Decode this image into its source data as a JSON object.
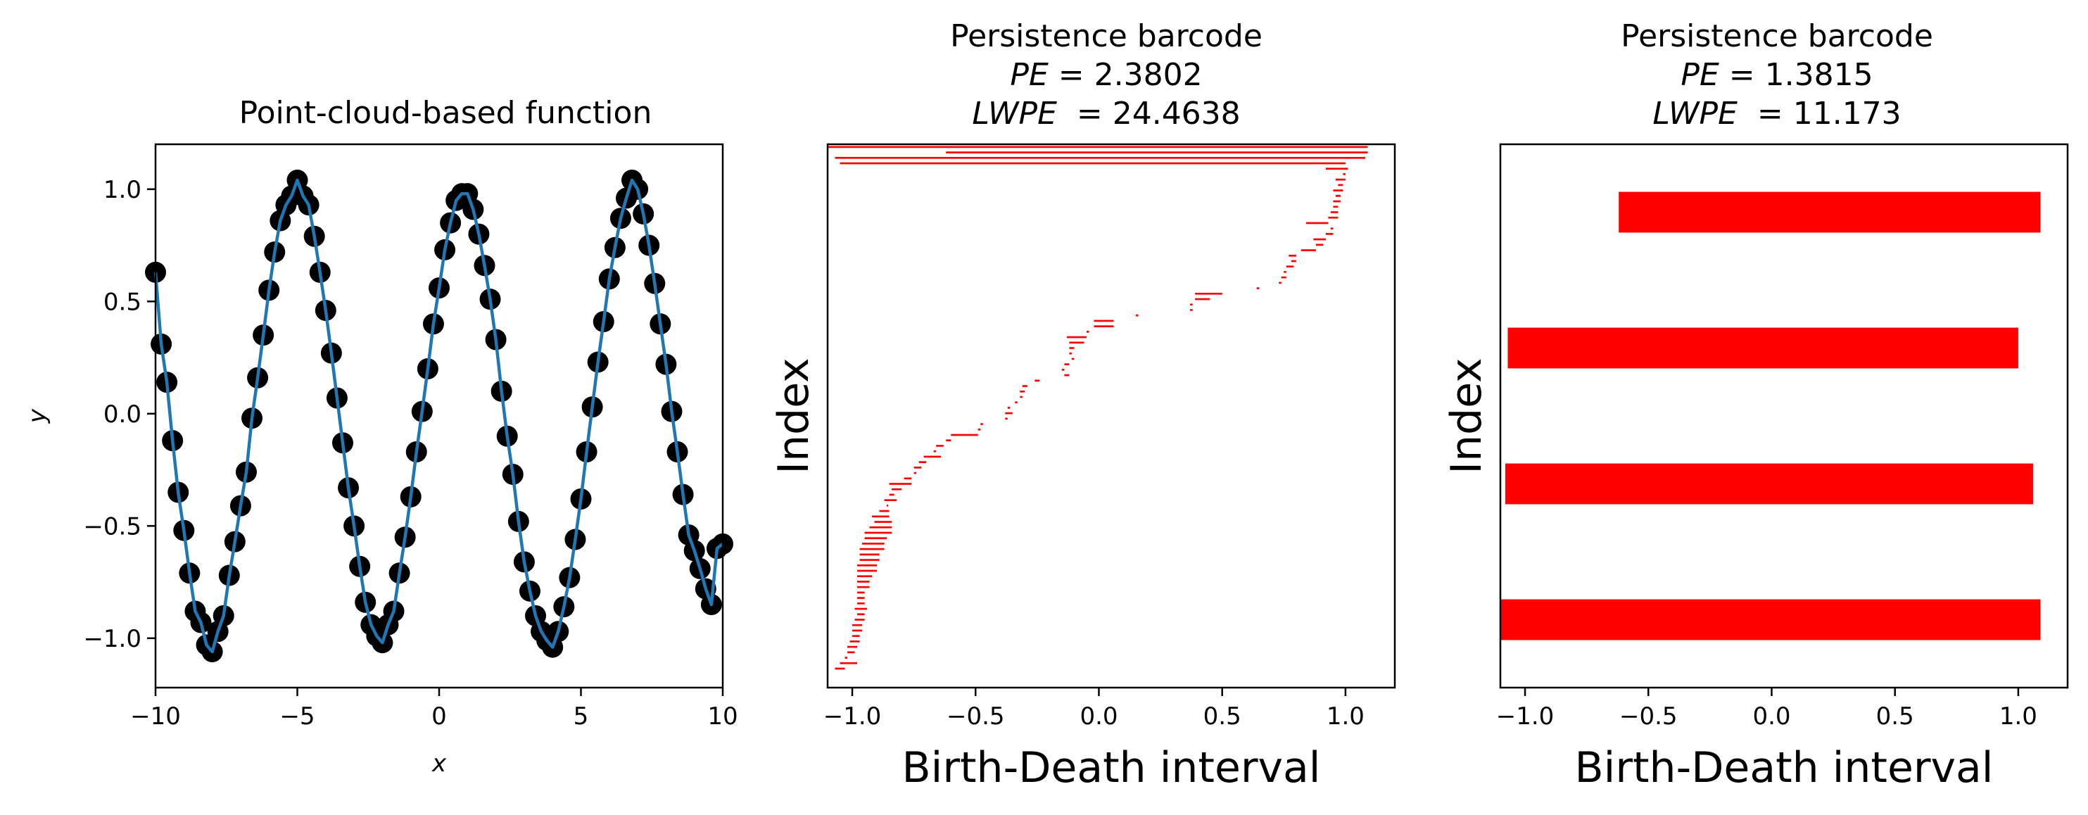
{
  "chart_data": [
    {
      "type": "scatter",
      "title": "Point-cloud-based function",
      "xlabel": "x",
      "ylabel": "y",
      "xlim": [
        -10,
        10
      ],
      "ylim": [
        -1.22,
        1.2
      ],
      "x_ticks": [
        -10,
        -5,
        0,
        5,
        10
      ],
      "x_tick_labels": [
        "−10",
        "−5",
        "0",
        "5",
        "10"
      ],
      "y_ticks": [
        -1.0,
        -0.5,
        0.0,
        0.5,
        1.0
      ],
      "y_tick_labels": [
        "−1.0",
        "−0.5",
        "0.0",
        "0.5",
        "1.0"
      ],
      "series": [
        {
          "name": "points",
          "marker": "o",
          "color": "#000000",
          "x": [
            -10,
            -9.8,
            -9.6,
            -9.4,
            -9.2,
            -9,
            -8.8,
            -8.6,
            -8.4,
            -8.2,
            -8,
            -7.8,
            -7.6,
            -7.4,
            -7.2,
            -7,
            -6.8,
            -6.6,
            -6.4,
            -6.2,
            -6,
            -5.8,
            -5.6,
            -5.4,
            -5.2,
            -5,
            -4.8,
            -4.6,
            -4.4,
            -4.2,
            -4,
            -3.8,
            -3.6,
            -3.4,
            -3.2,
            -3,
            -2.8,
            -2.6,
            -2.4,
            -2.2,
            -2,
            -1.8,
            -1.6,
            -1.4,
            -1.2,
            -1,
            -0.8,
            -0.6,
            -0.4,
            -0.2,
            0,
            0.2,
            0.4,
            0.6,
            0.8,
            1,
            1.2,
            1.4,
            1.6,
            1.8,
            2,
            2.2,
            2.4,
            2.6,
            2.8,
            3,
            3.2,
            3.4,
            3.6,
            3.8,
            4,
            4.2,
            4.4,
            4.6,
            4.8,
            5,
            5.2,
            5.4,
            5.6,
            5.8,
            6,
            6.2,
            6.4,
            6.6,
            6.8,
            7,
            7.2,
            7.4,
            7.6,
            7.8,
            8,
            8.2,
            8.4,
            8.6,
            8.8,
            9,
            9.2,
            9.4,
            9.6,
            9.8,
            10
          ],
          "y": [
            0.63,
            0.31,
            0.14,
            -0.12,
            -0.35,
            -0.52,
            -0.71,
            -0.88,
            -0.93,
            -1.03,
            -1.06,
            -0.97,
            -0.9,
            -0.72,
            -0.57,
            -0.41,
            -0.26,
            -0.02,
            0.16,
            0.35,
            0.55,
            0.72,
            0.86,
            0.93,
            0.97,
            1.04,
            0.97,
            0.93,
            0.79,
            0.63,
            0.46,
            0.27,
            0.07,
            -0.13,
            -0.33,
            -0.5,
            -0.68,
            -0.84,
            -0.94,
            -0.99,
            -1.02,
            -0.94,
            -0.88,
            -0.71,
            -0.55,
            -0.37,
            -0.17,
            0.01,
            0.2,
            0.4,
            0.56,
            0.73,
            0.85,
            0.95,
            0.98,
            0.98,
            0.91,
            0.8,
            0.66,
            0.51,
            0.33,
            0.1,
            -0.1,
            -0.27,
            -0.48,
            -0.66,
            -0.79,
            -0.9,
            -0.97,
            -1.01,
            -1.04,
            -0.97,
            -0.86,
            -0.73,
            -0.56,
            -0.38,
            -0.17,
            0.03,
            0.23,
            0.41,
            0.6,
            0.74,
            0.87,
            0.96,
            1.04,
            1.0,
            0.89,
            0.75,
            0.58,
            0.4,
            0.22,
            0.01,
            -0.17,
            -0.36,
            -0.54,
            -0.61,
            -0.69,
            -0.78,
            -0.85,
            -0.6,
            -0.58
          ]
        },
        {
          "name": "function",
          "style": "line",
          "color": "#1f77b4",
          "uses_points_of": "points"
        }
      ]
    },
    {
      "type": "barcode",
      "title": "Persistence barcode",
      "title_lines": [
        {
          "var": "PE",
          "text": " = 2.3802"
        },
        {
          "var": "LWPE",
          "text": "  = 24.4638"
        }
      ],
      "xlabel": "Birth-Death interval",
      "ylabel": "Index",
      "xlim": [
        -1.1,
        1.2
      ],
      "x_ticks": [
        -1.0,
        -0.5,
        0.0,
        0.5,
        1.0
      ],
      "x_tick_labels": [
        "−1.0",
        "−0.5",
        "0.0",
        "0.5",
        "1.0"
      ],
      "bar_color": "#ff0000",
      "bar_thickness_fraction": 0.35,
      "n_slots": 100,
      "intervals": [
        [
          -1.1,
          1.09
        ],
        [
          -0.62,
          1.09
        ],
        [
          -1.07,
          1.08
        ],
        [
          -1.05,
          1.0
        ],
        [
          0.92,
          1.01
        ],
        [
          0.99,
          1.0
        ],
        [
          0.96,
          1.0
        ],
        [
          0.97,
          0.99
        ],
        [
          0.95,
          0.99
        ],
        [
          0.96,
          0.98
        ],
        [
          0.95,
          0.98
        ],
        [
          0.95,
          0.97
        ],
        [
          0.94,
          0.97
        ],
        [
          0.93,
          0.97
        ],
        [
          0.84,
          0.93
        ],
        [
          0.94,
          0.95
        ],
        [
          0.92,
          0.95
        ],
        [
          0.87,
          0.92
        ],
        [
          0.88,
          0.91
        ],
        [
          0.82,
          0.88
        ],
        [
          0.77,
          0.8
        ],
        [
          0.78,
          0.8
        ],
        [
          0.76,
          0.79
        ],
        [
          0.75,
          0.76
        ],
        [
          0.74,
          0.76
        ],
        [
          0.73,
          0.74
        ],
        [
          0.64,
          0.65
        ],
        [
          0.39,
          0.5
        ],
        [
          0.39,
          0.45
        ],
        [
          0.37,
          0.38
        ],
        [
          0.37,
          0.38
        ],
        [
          0.15,
          0.16
        ],
        [
          -0.02,
          0.06
        ],
        [
          -0.02,
          0.06
        ],
        [
          -0.05,
          -0.04
        ],
        [
          -0.13,
          -0.05
        ],
        [
          -0.12,
          -0.06
        ],
        [
          -0.12,
          -0.1
        ],
        [
          -0.12,
          -0.11
        ],
        [
          -0.11,
          -0.1
        ],
        [
          -0.14,
          -0.12
        ],
        [
          -0.15,
          -0.14
        ],
        [
          -0.14,
          -0.12
        ],
        [
          -0.26,
          -0.24
        ],
        [
          -0.31,
          -0.29
        ],
        [
          -0.32,
          -0.3
        ],
        [
          -0.32,
          -0.31
        ],
        [
          -0.34,
          -0.33
        ],
        [
          -0.37,
          -0.36
        ],
        [
          -0.38,
          -0.35
        ],
        [
          -0.38,
          -0.37
        ],
        [
          -0.48,
          -0.47
        ],
        [
          -0.49,
          -0.48
        ],
        [
          -0.6,
          -0.49
        ],
        [
          -0.62,
          -0.6
        ],
        [
          -0.66,
          -0.63
        ],
        [
          -0.67,
          -0.66
        ],
        [
          -0.71,
          -0.64
        ],
        [
          -0.73,
          -0.7
        ],
        [
          -0.75,
          -0.72
        ],
        [
          -0.75,
          -0.74
        ],
        [
          -0.79,
          -0.76
        ],
        [
          -0.85,
          -0.76
        ],
        [
          -0.84,
          -0.8
        ],
        [
          -0.85,
          -0.83
        ],
        [
          -0.87,
          -0.82
        ],
        [
          -0.86,
          -0.86
        ],
        [
          -0.89,
          -0.85
        ],
        [
          -0.92,
          -0.85
        ],
        [
          -0.91,
          -0.84
        ],
        [
          -0.93,
          -0.84
        ],
        [
          -0.95,
          -0.84
        ],
        [
          -0.95,
          -0.86
        ],
        [
          -0.96,
          -0.87
        ],
        [
          -0.97,
          -0.87
        ],
        [
          -0.97,
          -0.89
        ],
        [
          -0.97,
          -0.89
        ],
        [
          -0.98,
          -0.9
        ],
        [
          -0.98,
          -0.9
        ],
        [
          -0.98,
          -0.92
        ],
        [
          -0.98,
          -0.93
        ],
        [
          -0.98,
          -0.93
        ],
        [
          -0.98,
          -0.95
        ],
        [
          -0.98,
          -0.95
        ],
        [
          -0.98,
          -0.95
        ],
        [
          -0.99,
          -0.94
        ],
        [
          -0.98,
          -0.95
        ],
        [
          -0.99,
          -0.95
        ],
        [
          -1.0,
          -0.96
        ],
        [
          -1.0,
          -0.96
        ],
        [
          -1.0,
          -0.97
        ],
        [
          -1.01,
          -0.97
        ],
        [
          -1.02,
          -0.98
        ],
        [
          -1.02,
          -0.99
        ],
        [
          -1.03,
          -1.02
        ],
        [
          -1.05,
          -0.98
        ],
        [
          -1.07,
          -1.03
        ]
      ]
    },
    {
      "type": "barcode",
      "title": "Persistence barcode",
      "title_lines": [
        {
          "var": "PE",
          "text": " = 1.3815"
        },
        {
          "var": "LWPE",
          "text": "  = 11.173"
        }
      ],
      "xlabel": "Birth-Death interval",
      "ylabel": "Index",
      "xlim": [
        -1.1,
        1.2
      ],
      "x_ticks": [
        -1.0,
        -0.5,
        0.0,
        0.5,
        1.0
      ],
      "x_tick_labels": [
        "−1.0",
        "−0.5",
        "0.0",
        "0.5",
        "1.0"
      ],
      "bar_color": "#ff0000",
      "bar_thickness_fraction": 0.3,
      "n_slots": 4,
      "intervals": [
        [
          -0.62,
          1.09
        ],
        [
          -1.07,
          1.0
        ],
        [
          -1.08,
          1.06
        ],
        [
          -1.1,
          1.09
        ]
      ]
    }
  ]
}
